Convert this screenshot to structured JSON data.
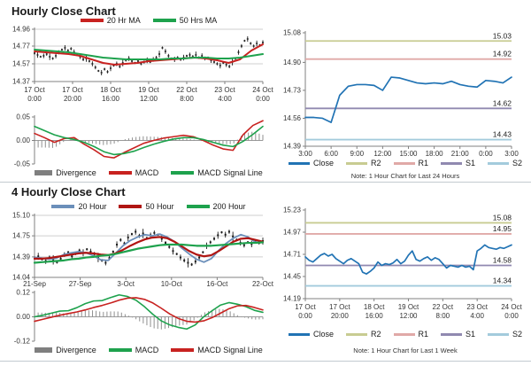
{
  "sections": [
    {
      "title": "Hourly Close Chart"
    },
    {
      "title": "4 Hourly Close Chart"
    }
  ],
  "colors": {
    "candle": "#1a1a1a",
    "grid": "#cfcfcf",
    "axis": "#808080",
    "zero_line": "#9a9a9a",
    "histogram": "#8f8f8f",
    "divider": "#c3cad0",
    "level_label": "#222222",
    "axis_label": "#333333"
  },
  "chart_data": [
    {
      "id": "hourly-price",
      "type": "line",
      "title": "Hourly Close Chart",
      "ylim": [
        14.37,
        14.96
      ],
      "ytick_labels": [
        "14.96",
        "14.77",
        "14.57",
        "14.37"
      ],
      "ytick_values": [
        14.96,
        14.77,
        14.57,
        14.37
      ],
      "xticks": [
        [
          "17 Oct",
          "0:00"
        ],
        [
          "17 Oct",
          "20:00"
        ],
        [
          "18 Oct",
          "16:00"
        ],
        [
          "19 Oct",
          "12:00"
        ],
        [
          "22 Oct",
          "8:00"
        ],
        [
          "23 Oct",
          "4:00"
        ],
        [
          "24 Oct",
          "0:00"
        ]
      ],
      "legend": [
        {
          "label": "20 Hr MA",
          "color": "#c82220"
        },
        {
          "label": "50 Hrs MA",
          "color": "#1ea24d"
        }
      ],
      "series": {
        "close": [
          14.69,
          14.67,
          14.65,
          14.66,
          14.68,
          14.65,
          14.63,
          14.66,
          14.7,
          14.73,
          14.75,
          14.72,
          14.74,
          14.7,
          14.67,
          14.65,
          14.62,
          14.63,
          14.6,
          14.57,
          14.53,
          14.49,
          14.47,
          14.51,
          14.48,
          14.52,
          14.55,
          14.57,
          14.54,
          14.58,
          14.61,
          14.63,
          14.6,
          14.58,
          14.6,
          14.57,
          14.59,
          14.61,
          14.59,
          14.62,
          14.64,
          14.68,
          14.75,
          14.71,
          14.66,
          14.63,
          14.62,
          14.64,
          14.62,
          14.64,
          14.66,
          14.67,
          14.65,
          14.67,
          14.64,
          14.66,
          14.63,
          14.64,
          14.61,
          14.59,
          14.57,
          14.55,
          14.58,
          14.56,
          14.54,
          14.59,
          14.63,
          14.7,
          14.77,
          14.83,
          14.85,
          14.8,
          14.77,
          14.8,
          14.78,
          14.81
        ],
        "ma20": [
          14.71,
          14.7,
          14.69,
          14.68,
          14.66,
          14.62,
          14.58,
          14.56,
          14.57,
          14.58,
          14.6,
          14.61,
          14.62,
          14.63,
          14.64,
          14.63,
          14.61,
          14.58,
          14.62,
          14.72,
          14.79
        ],
        "ma50": [
          14.73,
          14.72,
          14.71,
          14.7,
          14.68,
          14.66,
          14.64,
          14.63,
          14.62,
          14.62,
          14.62,
          14.62,
          14.63,
          14.63,
          14.64,
          14.64,
          14.63,
          14.63,
          14.64,
          14.66,
          14.68
        ]
      },
      "wick_pattern": [
        0.018,
        0.032,
        0.012,
        0.026,
        0.02,
        0.038,
        0.015,
        0.028,
        0.022,
        0.012,
        0.03,
        0.016
      ]
    },
    {
      "id": "hourly-macd",
      "type": "bar",
      "ylim": [
        -0.05,
        0.05
      ],
      "ytick_labels": [
        "0.05",
        "0.00",
        "-0.05"
      ],
      "ytick_values": [
        0.05,
        0,
        -0.05
      ],
      "legend": [
        {
          "label": "Divergence",
          "color": "#7f7f7f"
        },
        {
          "label": "MACD",
          "color": "#c82220"
        },
        {
          "label": "MACD Signal Line",
          "color": "#1ea24d"
        }
      ],
      "series": {
        "macd": [
          0.015,
          0.006,
          -0.004,
          0.004,
          0.006,
          -0.008,
          -0.02,
          -0.034,
          -0.037,
          -0.026,
          -0.016,
          -0.006,
          0,
          0.005,
          0.008,
          0.011,
          0.008,
          0,
          -0.01,
          -0.018,
          -0.021,
          0.012,
          0.032,
          0.042
        ],
        "signal": [
          0.03,
          0.021,
          0.012,
          0.006,
          0.002,
          -0.004,
          -0.013,
          -0.024,
          -0.03,
          -0.028,
          -0.023,
          -0.015,
          -0.008,
          -0.002,
          0.003,
          0.006,
          0.006,
          0.002,
          -0.004,
          -0.01,
          -0.013,
          -0.002,
          0.013,
          0.03
        ]
      }
    },
    {
      "id": "hourly-support-resistance",
      "type": "line",
      "ylim": [
        14.39,
        15.08
      ],
      "ytick_labels": [
        "15.08",
        "14.90",
        "14.73",
        "14.56",
        "14.39"
      ],
      "ytick_values": [
        15.08,
        14.9,
        14.73,
        14.56,
        14.39
      ],
      "xticks": [
        "3:00",
        "6:00",
        "9:00",
        "12:00",
        "15:00",
        "18:00",
        "21:00",
        "0:00",
        "3:00"
      ],
      "legend": [
        {
          "label": "Close",
          "color": "#2173b4"
        },
        {
          "label": "R2",
          "color": "#c8cc92"
        },
        {
          "label": "R1",
          "color": "#e0a9a7"
        },
        {
          "label": "S1",
          "color": "#9089b0"
        },
        {
          "label": "S2",
          "color": "#a3cbdc"
        }
      ],
      "levels": [
        {
          "name": "R2",
          "value": 15.03,
          "label": "15.03",
          "li": 1
        },
        {
          "name": "R1",
          "value": 14.92,
          "label": "14.92",
          "li": 2
        },
        {
          "name": "S1",
          "value": 14.62,
          "label": "14.62",
          "li": 3
        },
        {
          "name": "S2",
          "value": 14.43,
          "label": "14.43",
          "li": 4
        }
      ],
      "series": {
        "close": [
          14.565,
          14.565,
          14.56,
          14.535,
          14.7,
          14.755,
          14.765,
          14.765,
          14.76,
          14.73,
          14.81,
          14.805,
          14.79,
          14.775,
          14.77,
          14.775,
          14.77,
          14.785,
          14.765,
          14.755,
          14.75,
          14.79,
          14.785,
          14.775,
          14.81
        ]
      },
      "note": "Note: 1 Hour Chart for Last 24 Hours"
    },
    {
      "id": "four-hourly-price",
      "type": "line",
      "title": "4 Hourly Close Chart",
      "ylim": [
        14.04,
        15.1
      ],
      "ytick_labels": [
        "15.10",
        "14.75",
        "14.39",
        "14.04"
      ],
      "ytick_values": [
        15.1,
        14.75,
        14.39,
        14.04
      ],
      "xticks": [
        "21-Sep",
        "27-Sep",
        "3-Oct",
        "10-Oct",
        "16-Oct",
        "22-Oct"
      ],
      "legend": [
        {
          "label": "20 Hour",
          "color": "#6b8fba"
        },
        {
          "label": "50 Hour",
          "color": "#b01512"
        },
        {
          "label": "200 Hour",
          "color": "#1ea24d"
        }
      ],
      "series": {
        "close": [
          14.37,
          14.4,
          14.35,
          14.32,
          14.38,
          14.34,
          14.3,
          14.36,
          14.43,
          14.47,
          14.4,
          14.45,
          14.5,
          14.46,
          14.52,
          14.48,
          14.44,
          14.38,
          14.33,
          14.29,
          14.37,
          14.48,
          14.6,
          14.68,
          14.62,
          14.72,
          14.78,
          14.82,
          14.75,
          14.79,
          14.71,
          14.76,
          14.8,
          14.77,
          14.7,
          14.63,
          14.56,
          14.49,
          14.44,
          14.38,
          14.33,
          14.29,
          14.26,
          14.31,
          14.38,
          14.47,
          14.58,
          14.64,
          14.7,
          14.76,
          14.81,
          14.77,
          14.82,
          14.74,
          14.68,
          14.63,
          14.59,
          14.64,
          14.61,
          14.65,
          14.63,
          14.66
        ],
        "ma20": [
          14.38,
          14.37,
          14.35,
          14.37,
          14.43,
          14.46,
          14.48,
          14.46,
          14.41,
          14.34,
          14.33,
          14.45,
          14.58,
          14.67,
          14.73,
          14.77,
          14.75,
          14.78,
          14.73,
          14.65,
          14.54,
          14.44,
          14.35,
          14.3,
          14.36,
          14.5,
          14.62,
          14.71,
          14.77,
          14.73,
          14.64,
          14.64
        ],
        "ma50": [
          14.36,
          14.36,
          14.37,
          14.39,
          14.41,
          14.43,
          14.45,
          14.46,
          14.45,
          14.43,
          14.42,
          14.45,
          14.51,
          14.58,
          14.64,
          14.69,
          14.72,
          14.73,
          14.71,
          14.65,
          14.57,
          14.49,
          14.43,
          14.4,
          14.42,
          14.49,
          14.57,
          14.65,
          14.7,
          14.71,
          14.68,
          14.65
        ],
        "ma200": [
          14.29,
          14.3,
          14.31,
          14.32,
          14.33,
          14.35,
          14.36,
          14.38,
          14.39,
          14.41,
          14.42,
          14.44,
          14.47,
          14.5,
          14.53,
          14.55,
          14.57,
          14.59,
          14.6,
          14.6,
          14.6,
          14.59,
          14.58,
          14.58,
          14.58,
          14.59,
          14.6,
          14.61,
          14.62,
          14.63,
          14.63,
          14.64
        ]
      },
      "wick_pattern": [
        0.03,
        0.06,
        0.02,
        0.05,
        0.035,
        0.08,
        0.025,
        0.045,
        0.04,
        0.02,
        0.055,
        0.03
      ]
    },
    {
      "id": "four-hourly-macd",
      "type": "bar",
      "ylim": [
        -0.12,
        0.12
      ],
      "ytick_labels": [
        "0.12",
        "0.00",
        "-0.12"
      ],
      "ytick_values": [
        0.12,
        0,
        -0.12
      ],
      "legend": [
        {
          "label": "Divergence",
          "color": "#7f7f7f"
        },
        {
          "label": "MACD",
          "color": "#1ea24d"
        },
        {
          "label": "MACD Signal Line",
          "color": "#c82220"
        }
      ],
      "series": {
        "macd": [
          0,
          0.008,
          0.018,
          0.028,
          0.03,
          0.045,
          0.065,
          0.078,
          0.08,
          0.095,
          0.108,
          0.1,
          0.082,
          0.05,
          0.012,
          -0.02,
          -0.04,
          -0.052,
          -0.06,
          -0.04,
          0,
          0.03,
          0.058,
          0.07,
          0.062,
          0.05,
          0.032,
          0.022
        ],
        "signal": [
          -0.022,
          -0.012,
          -0.002,
          0.008,
          0.016,
          0.024,
          0.034,
          0.046,
          0.056,
          0.068,
          0.082,
          0.092,
          0.094,
          0.086,
          0.068,
          0.042,
          0.014,
          -0.008,
          -0.022,
          -0.026,
          -0.02,
          -0.004,
          0.018,
          0.04,
          0.054,
          0.056,
          0.046,
          0.034
        ]
      }
    },
    {
      "id": "weekly-support-resistance",
      "type": "line",
      "ylim": [
        14.19,
        15.23
      ],
      "ytick_labels": [
        "15.23",
        "14.97",
        "14.71",
        "14.45",
        "14.19"
      ],
      "ytick_values": [
        15.23,
        14.97,
        14.71,
        14.45,
        14.19
      ],
      "xticks": [
        [
          "17 Oct",
          "0:00"
        ],
        [
          "17 Oct",
          "20:00"
        ],
        [
          "18 Oct",
          "16:00"
        ],
        [
          "19 Oct",
          "12:00"
        ],
        [
          "22 Oct",
          "8:00"
        ],
        [
          "23 Oct",
          "4:00"
        ],
        [
          "24 Oct",
          "0:00"
        ]
      ],
      "legend": [
        {
          "label": "Close",
          "color": "#2173b4"
        },
        {
          "label": "R2",
          "color": "#c8cc92"
        },
        {
          "label": "R1",
          "color": "#e0a9a7"
        },
        {
          "label": "S1",
          "color": "#9089b0"
        },
        {
          "label": "S2",
          "color": "#a3cbdc"
        }
      ],
      "levels": [
        {
          "name": "R2",
          "value": 15.08,
          "label": "15.08",
          "li": 1
        },
        {
          "name": "R1",
          "value": 14.95,
          "label": "14.95",
          "li": 2
        },
        {
          "name": "S1",
          "value": 14.58,
          "label": "14.58",
          "li": 3
        },
        {
          "name": "S2",
          "value": 14.34,
          "label": "14.34",
          "li": 4
        }
      ],
      "series": {
        "close": [
          14.68,
          14.64,
          14.62,
          14.66,
          14.7,
          14.72,
          14.69,
          14.71,
          14.66,
          14.63,
          14.6,
          14.64,
          14.66,
          14.63,
          14.6,
          14.5,
          14.48,
          14.51,
          14.55,
          14.62,
          14.58,
          14.6,
          14.59,
          14.61,
          14.65,
          14.6,
          14.63,
          14.7,
          14.75,
          14.65,
          14.63,
          14.66,
          14.68,
          14.64,
          14.67,
          14.65,
          14.6,
          14.55,
          14.58,
          14.57,
          14.56,
          14.58,
          14.56,
          14.57,
          14.53,
          14.75,
          14.78,
          14.82,
          14.79,
          14.78,
          14.77,
          14.79,
          14.78,
          14.8,
          14.82
        ]
      },
      "note": "Note: 1 Hour Chart for Last 1 Week"
    }
  ]
}
